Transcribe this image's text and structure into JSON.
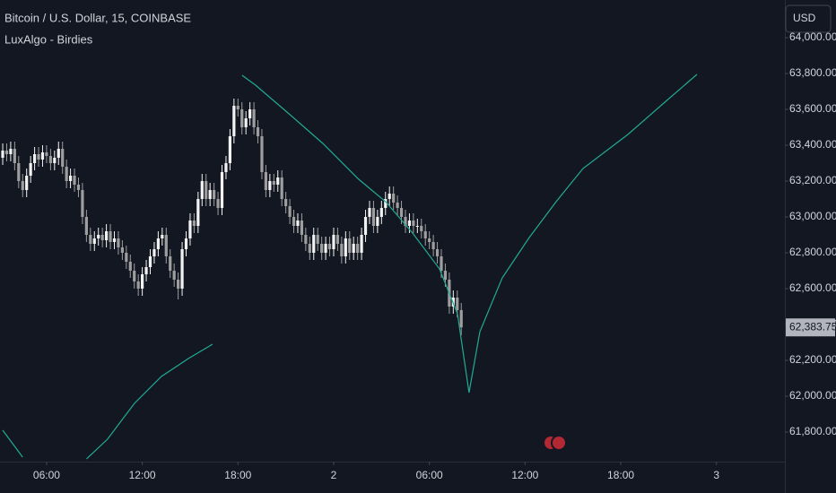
{
  "chart_data": {
    "type": "candlestick",
    "title": "Bitcoin / U.S. Dollar, 15, COINBASE",
    "currency": "USD",
    "up_color": "#f2f2f2",
    "down_color": "#9e9e9e",
    "x": [
      3.25,
      3.5,
      3.75,
      4,
      4.25,
      4.5,
      4.75,
      5,
      5.25,
      5.5,
      5.75,
      6,
      6.25,
      6.5,
      6.75,
      7,
      7.25,
      7.5,
      7.75,
      8,
      8.25,
      8.5,
      8.75,
      9,
      9.25,
      9.5,
      9.75,
      10,
      10.25,
      10.5,
      10.75,
      11,
      11.25,
      11.5,
      11.75,
      12,
      12.25,
      12.5,
      12.75,
      13,
      13.25,
      13.5,
      13.75,
      14,
      14.25,
      14.5,
      14.75,
      15,
      15.25,
      15.5,
      15.75,
      16,
      16.25,
      16.5,
      16.75,
      17,
      17.25,
      17.5,
      17.75,
      18,
      18.25,
      18.5,
      18.75,
      19,
      19.25,
      19.5,
      19.75,
      20,
      20.25,
      20.5,
      20.75,
      21,
      21.25,
      21.5,
      21.75,
      22,
      22.25,
      22.5,
      22.75,
      23,
      23.25,
      23.5,
      23.75,
      24,
      24.25,
      24.5,
      24.75,
      25,
      25.25,
      25.5,
      25.75,
      26,
      26.25,
      26.5,
      26.75,
      27,
      27.25,
      27.5,
      27.75,
      28,
      28.25,
      28.5,
      28.75,
      29,
      29.25,
      29.5,
      29.75,
      30,
      30.25,
      30.5,
      30.75,
      31,
      31.25,
      31.5,
      31.75,
      32
    ],
    "open": [
      63330,
      63370,
      63350,
      63380,
      63300,
      63200,
      63150,
      63230,
      63300,
      63350,
      63320,
      63360,
      63340,
      63300,
      63330,
      63380,
      63280,
      63200,
      63230,
      63180,
      63150,
      63000,
      62900,
      62850,
      62880,
      62900,
      62870,
      62920,
      62860,
      62880,
      62830,
      62800,
      62750,
      62700,
      62640,
      62600,
      62680,
      62720,
      62780,
      62820,
      62880,
      62900,
      62780,
      62700,
      62650,
      62600,
      62820,
      62880,
      62980,
      62950,
      63100,
      63200,
      63100,
      63150,
      63100,
      63050,
      63250,
      63300,
      63450,
      63620,
      63600,
      63500,
      63550,
      63600,
      63500,
      63450,
      63250,
      63150,
      63200,
      63180,
      63220,
      63100,
      63060,
      63000,
      62950,
      62980,
      62900,
      62850,
      62800,
      62900,
      62850,
      62800,
      62850,
      62820,
      62900,
      62850,
      62780,
      62880,
      62800,
      62850,
      62800,
      62900,
      63000,
      63050,
      62950,
      63000,
      63050,
      63100,
      63130,
      63080,
      63050,
      63000,
      62950,
      62980,
      62950,
      62950,
      62920,
      62880,
      62860,
      62820,
      62780,
      62700,
      62650,
      62500,
      62550,
      62480
    ],
    "high": [
      63410,
      63410,
      63420,
      63420,
      63340,
      63240,
      63270,
      63340,
      63390,
      63390,
      63400,
      63400,
      63380,
      63370,
      63420,
      63420,
      63320,
      63270,
      63270,
      63220,
      63190,
      63040,
      62940,
      62920,
      62940,
      62940,
      62960,
      62960,
      62920,
      62920,
      62870,
      62840,
      62790,
      62740,
      62680,
      62720,
      62760,
      62820,
      62860,
      62920,
      62940,
      62940,
      62820,
      62740,
      62690,
      62860,
      62920,
      63020,
      63020,
      63140,
      63240,
      63240,
      63190,
      63190,
      63140,
      63290,
      63340,
      63490,
      63660,
      63660,
      63640,
      63590,
      63640,
      63640,
      63540,
      63490,
      63290,
      63240,
      63240,
      63260,
      63260,
      63140,
      63100,
      63040,
      63020,
      63020,
      62940,
      62890,
      62940,
      62940,
      62890,
      62890,
      62890,
      62940,
      62940,
      62890,
      62920,
      62920,
      62890,
      62890,
      62940,
      63040,
      63090,
      63090,
      63040,
      63090,
      63140,
      63170,
      63170,
      63120,
      63090,
      63040,
      63020,
      63020,
      62990,
      62990,
      62960,
      62920,
      62900,
      62860,
      62820,
      62740,
      62690,
      62590,
      62590,
      62520
    ],
    "low": [
      63290,
      63310,
      63310,
      63260,
      63160,
      63110,
      63110,
      63190,
      63260,
      63280,
      63280,
      63300,
      63260,
      63260,
      63290,
      63240,
      63160,
      63160,
      63140,
      63110,
      62960,
      62860,
      62810,
      62810,
      62840,
      62830,
      62830,
      62820,
      62820,
      62790,
      62760,
      62710,
      62660,
      62600,
      62560,
      62560,
      62640,
      62680,
      62740,
      62780,
      62840,
      62740,
      62660,
      62610,
      62540,
      62560,
      62780,
      62840,
      62910,
      62910,
      63060,
      63060,
      63060,
      63060,
      63010,
      63010,
      63210,
      63260,
      63410,
      63560,
      63460,
      63460,
      63510,
      63460,
      63410,
      63210,
      63110,
      63110,
      63140,
      63140,
      63060,
      63020,
      62960,
      62910,
      62910,
      62860,
      62810,
      62760,
      62760,
      62810,
      62760,
      62760,
      62780,
      62780,
      62810,
      62740,
      62740,
      62760,
      62760,
      62760,
      62760,
      62860,
      62960,
      62910,
      62910,
      62960,
      63010,
      63060,
      63040,
      63010,
      62960,
      62910,
      62910,
      62910,
      62910,
      62880,
      62840,
      62820,
      62780,
      62740,
      62660,
      62610,
      62460,
      62460,
      62440,
      62340
    ],
    "close": [
      63370,
      63350,
      63380,
      63300,
      63200,
      63150,
      63230,
      63300,
      63350,
      63320,
      63360,
      63340,
      63300,
      63330,
      63380,
      63280,
      63200,
      63230,
      63180,
      63150,
      63000,
      62900,
      62850,
      62880,
      62900,
      62870,
      62920,
      62860,
      62880,
      62830,
      62800,
      62750,
      62700,
      62640,
      62600,
      62680,
      62720,
      62780,
      62820,
      62880,
      62900,
      62780,
      62700,
      62650,
      62600,
      62820,
      62880,
      62980,
      62950,
      63100,
      63200,
      63100,
      63150,
      63100,
      63050,
      63250,
      63300,
      63450,
      63620,
      63600,
      63500,
      63550,
      63600,
      63500,
      63450,
      63250,
      63150,
      63200,
      63180,
      63220,
      63100,
      63060,
      63000,
      62950,
      62980,
      62900,
      62850,
      62800,
      62900,
      62850,
      62800,
      62850,
      62820,
      62900,
      62850,
      62780,
      62880,
      62800,
      62850,
      62800,
      62900,
      63000,
      63050,
      62950,
      63000,
      63050,
      63100,
      63130,
      63080,
      63050,
      63000,
      62950,
      62980,
      62950,
      62950,
      62920,
      62880,
      62860,
      62820,
      62780,
      62700,
      62650,
      62500,
      62550,
      62480,
      62383.75
    ],
    "last_price": {
      "value": 62383.75,
      "label": "62,383.75"
    },
    "lines": [
      {
        "name": "LuxAlgo - Birdies",
        "color": "#22ab94",
        "x": [
          3.25,
          3.5,
          3.75,
          4,
          4.25,
          4.5,
          null,
          8.5,
          9.82,
          11.51,
          13.2,
          14.89,
          16.41,
          null,
          18.26,
          19.1,
          21.07,
          23.32,
          25.57,
          27.26,
          28.95,
          30.64,
          31.76,
          32.49,
          33.17,
          34.57,
          36.26,
          37.95,
          39.63,
          42.45,
          44.7,
          46.78
        ],
        "values": [
          61810,
          61780,
          61750,
          61720,
          61690,
          61660,
          null,
          61650,
          61760,
          61960,
          62110,
          62210,
          62290,
          null,
          63790,
          63735,
          63585,
          63410,
          63210,
          63085,
          62910,
          62710,
          62460,
          62020,
          62360,
          62660,
          62885,
          63085,
          63270,
          63460,
          63635,
          63795
        ]
      }
    ],
    "xlim": [
      3.08,
      52.29
    ],
    "ylim": [
      61635,
      64210
    ],
    "xticks": [
      {
        "value": 6,
        "label": "06:00"
      },
      {
        "value": 12,
        "label": "12:00"
      },
      {
        "value": 18,
        "label": "18:00"
      },
      {
        "value": 24,
        "label": "2"
      },
      {
        "value": 30,
        "label": "06:00"
      },
      {
        "value": 36,
        "label": "12:00"
      },
      {
        "value": 42,
        "label": "18:00"
      },
      {
        "value": 48,
        "label": "3"
      }
    ],
    "yticks": [
      {
        "value": 61800,
        "label": "61,800.00"
      },
      {
        "value": 62000,
        "label": "62,000.00"
      },
      {
        "value": 62200,
        "label": "62,200.00"
      },
      {
        "value": 62400,
        "label": "62,400.00"
      },
      {
        "value": 62600,
        "label": "62,600.00"
      },
      {
        "value": 62800,
        "label": "62,800.00"
      },
      {
        "value": 63000,
        "label": "63,000.00"
      },
      {
        "value": 63200,
        "label": "63,200.00"
      },
      {
        "value": 63400,
        "label": "63,400.00"
      },
      {
        "value": 63600,
        "label": "63,600.00"
      },
      {
        "value": 63800,
        "label": "63,800.00"
      },
      {
        "value": 64000,
        "label": "64,000.00"
      }
    ]
  }
}
